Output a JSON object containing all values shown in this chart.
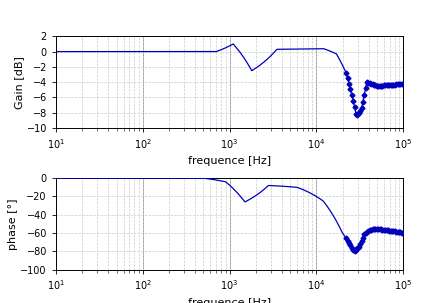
{
  "freq_min": 10,
  "freq_max": 100000,
  "gain_ylim": [
    -10,
    2
  ],
  "gain_yticks": [
    -10,
    -8,
    -6,
    -4,
    -2,
    0,
    2
  ],
  "phase_ylim": [
    -100,
    0
  ],
  "phase_yticks": [
    -100,
    -80,
    -60,
    -40,
    -20,
    0
  ],
  "gain_ylabel": "Gain [dB]",
  "phase_ylabel": "phase [°]",
  "xlabel": "frequence [Hz]",
  "line_color": "#0000bb",
  "marker_color": "#0000bb",
  "background_color": "#ffffff",
  "grid_minor_color": "#cccccc",
  "grid_major_color": "#999999",
  "vertical_lines": [
    100,
    1000,
    10000
  ],
  "xlabel_fontsize": 8,
  "ylabel_fontsize": 8,
  "tick_fontsize": 7
}
